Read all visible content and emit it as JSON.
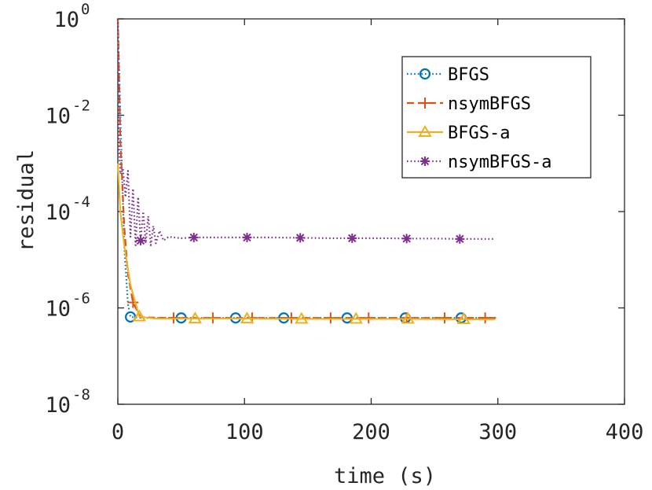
{
  "chart_data": {
    "type": "line",
    "xlabel": "time (s)",
    "ylabel": "residual",
    "yscale": "log",
    "xlim": [
      0,
      400
    ],
    "ylim": [
      1e-08,
      1
    ],
    "grid": false,
    "legend_position": "top-right",
    "x_ticks": [
      {
        "value": 0,
        "label": "0"
      },
      {
        "value": 100,
        "label": "100"
      },
      {
        "value": 200,
        "label": "200"
      },
      {
        "value": 300,
        "label": "300"
      },
      {
        "value": 400,
        "label": "400"
      }
    ],
    "y_ticks": [
      {
        "value": 1,
        "base": "10",
        "exp": "0"
      },
      {
        "value": 0.01,
        "base": "10",
        "exp": "-2"
      },
      {
        "value": 0.0001,
        "base": "10",
        "exp": "-4"
      },
      {
        "value": 1e-06,
        "base": "10",
        "exp": "-6"
      },
      {
        "value": 1e-08,
        "base": "10",
        "exp": "-8"
      }
    ],
    "series": [
      {
        "name": "BFGS",
        "color": "#0072BD",
        "line_style": "dotted",
        "marker": "circle",
        "x": [
          0,
          2,
          5,
          8,
          10,
          20,
          50,
          93,
          131,
          181,
          227,
          271,
          298
        ],
        "y": [
          1,
          0.01,
          2e-05,
          1.2e-06,
          6.5e-07,
          6.2e-07,
          6.2e-07,
          6.2e-07,
          6.2e-07,
          6.2e-07,
          6.2e-07,
          6.2e-07,
          6.2e-07
        ],
        "marker_x": [
          10,
          50,
          93,
          131,
          181,
          227,
          271
        ]
      },
      {
        "name": "nsymBFGS",
        "color": "#D95319",
        "line_style": "dashed",
        "marker": "plus",
        "x": [
          0,
          2,
          5,
          8,
          12,
          18,
          40,
          60,
          90,
          140,
          200,
          260,
          300
        ],
        "y": [
          1,
          0.003,
          5e-05,
          5e-06,
          1.3e-06,
          6.4e-07,
          6.2e-07,
          6.2e-07,
          6.2e-07,
          6.2e-07,
          6.2e-07,
          6.2e-07,
          6.2e-07
        ],
        "marker_x": [
          12,
          44,
          75,
          106,
          137,
          168,
          198,
          228,
          258,
          290
        ]
      },
      {
        "name": "BFGS-a",
        "color": "#EDB120",
        "line_style": "solid",
        "marker": "triangle",
        "x": [
          0,
          2,
          5,
          10,
          17,
          30,
          61,
          102,
          145,
          188,
          229,
          273,
          298
        ],
        "y": [
          0.001,
          0.0001,
          2e-05,
          3e-06,
          6.6e-07,
          6e-07,
          6e-07,
          6e-07,
          5.9e-07,
          5.9e-07,
          5.9e-07,
          5.8e-07,
          5.8e-07
        ],
        "marker_x": [
          17,
          61,
          102,
          145,
          188,
          229,
          273
        ]
      },
      {
        "name": "nsymBFGS-a",
        "color": "#7E2F8E",
        "line_style": "dotted",
        "marker": "asterisk",
        "x": [
          0,
          1,
          2,
          4,
          6,
          8,
          10,
          12,
          14,
          16,
          18,
          20,
          22,
          24,
          26,
          28,
          30,
          33,
          36,
          40,
          50,
          60,
          80,
          102,
          120,
          144,
          170,
          185,
          210,
          228,
          250,
          270,
          298
        ],
        "y": [
          1,
          0.002,
          0.0006,
          0.0008,
          0.0002,
          0.0007,
          3e-05,
          0.0003,
          2e-05,
          0.0002,
          2.5e-05,
          0.0001,
          2.2e-05,
          8e-05,
          2e-05,
          5e-05,
          2.2e-05,
          4e-05,
          2.5e-05,
          3e-05,
          2.8e-05,
          2.9e-05,
          2.9e-05,
          2.9e-05,
          2.9e-05,
          2.85e-05,
          2.8e-05,
          2.8e-05,
          2.8e-05,
          2.75e-05,
          2.75e-05,
          2.7e-05,
          2.7e-05
        ],
        "marker_x": [
          18,
          60,
          102,
          144,
          185,
          228,
          270
        ]
      }
    ]
  }
}
